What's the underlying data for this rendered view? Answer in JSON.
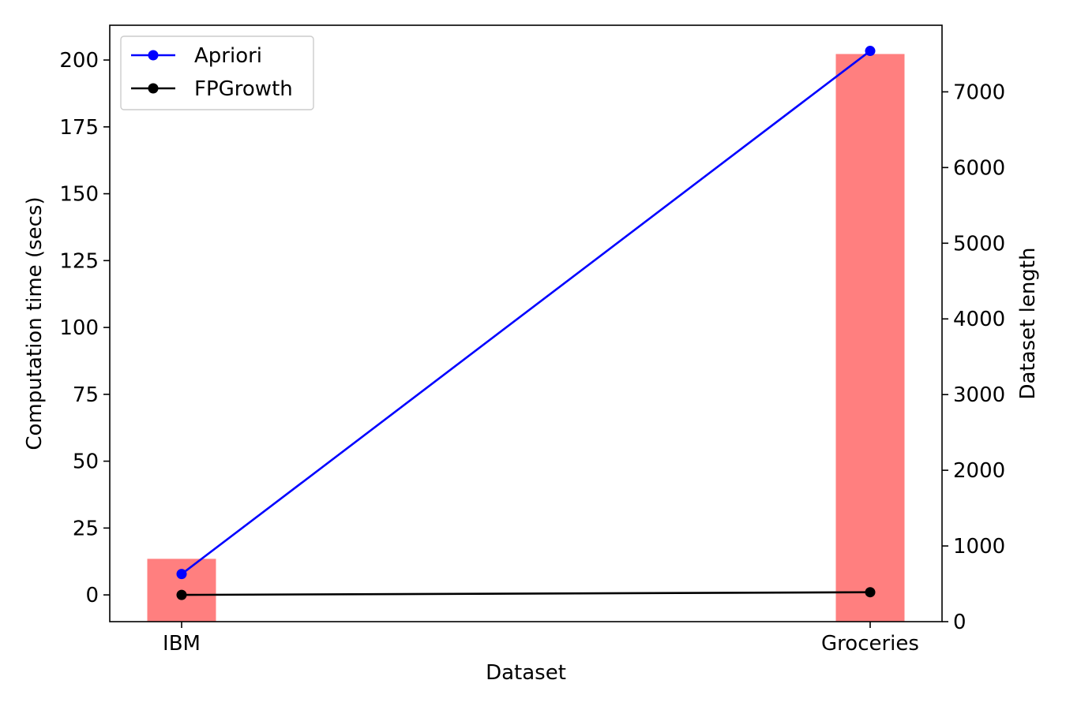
{
  "chart_data": {
    "type": "bar",
    "title": "",
    "xlabel": "Dataset",
    "ylabel_left": "Computation time (secs)",
    "ylabel_right": "Dataset length",
    "categories": [
      "IBM",
      "Groceries"
    ],
    "bars": {
      "axis": "right",
      "values": [
        830,
        7500
      ],
      "color": "#ff7f7f"
    },
    "series": [
      {
        "name": "Apriori",
        "axis": "left",
        "values": [
          7.8,
          203.4
        ],
        "color": "#0000ff"
      },
      {
        "name": "FPGrowth",
        "axis": "left",
        "values": [
          0.0,
          1.0
        ],
        "color": "#000000"
      }
    ],
    "ylim_left": [
      -10,
      213
    ],
    "ylim_right": [
      0,
      7880
    ],
    "yticks_left": [
      "0",
      "25",
      "50",
      "75",
      "100",
      "125",
      "150",
      "175",
      "200"
    ],
    "yticks_right": [
      "0",
      "1000",
      "2000",
      "3000",
      "4000",
      "5000",
      "6000",
      "7000"
    ],
    "grid": false,
    "legend_position": "top-left"
  }
}
